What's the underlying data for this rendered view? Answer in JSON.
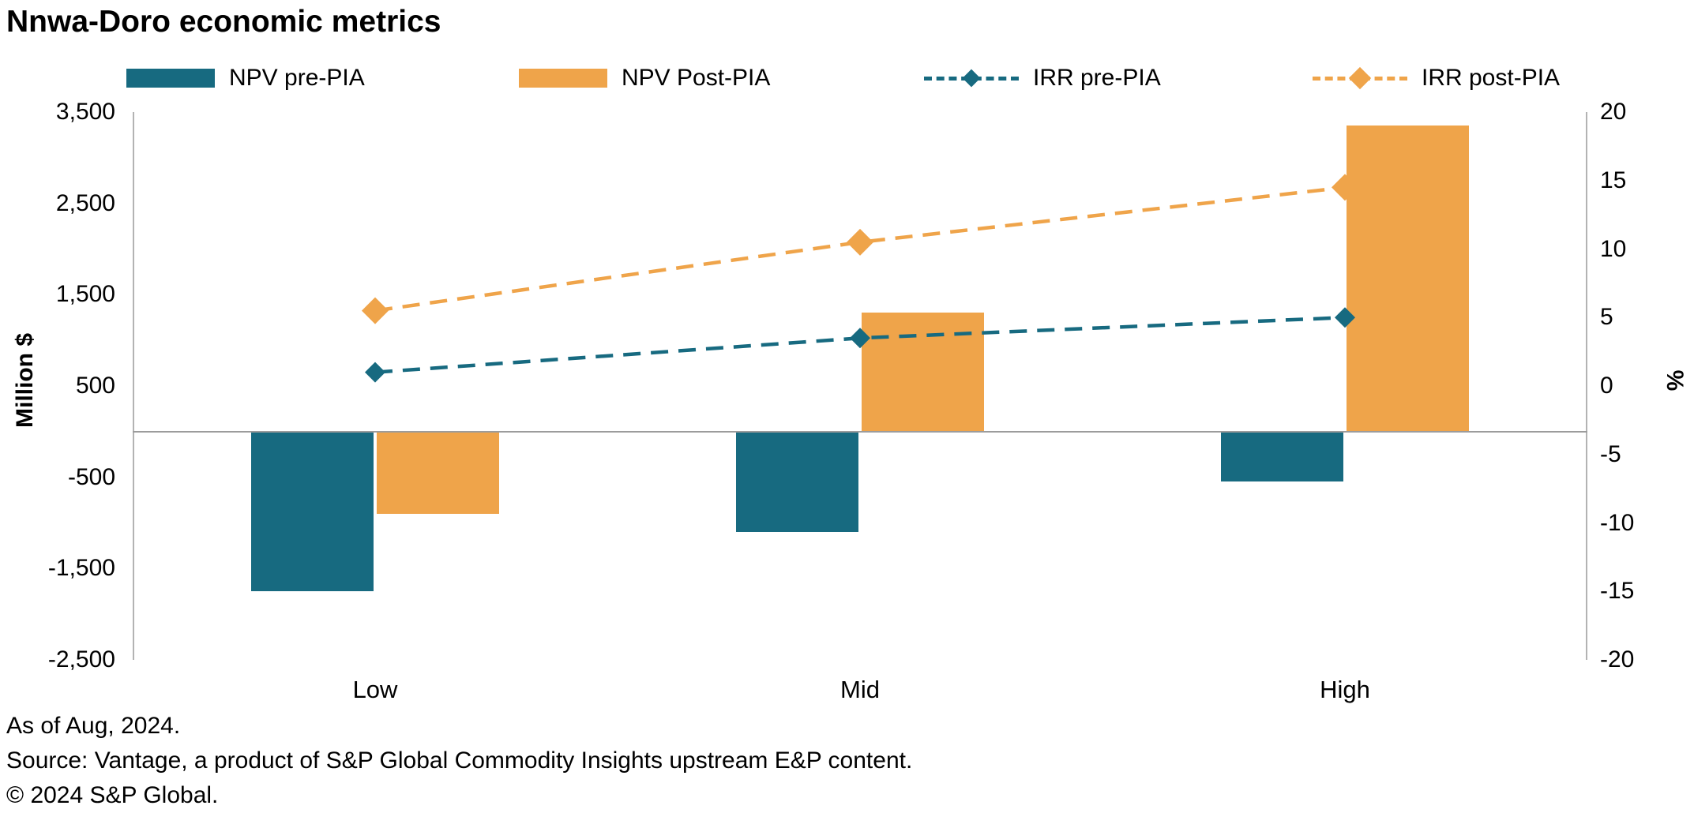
{
  "chart_data": {
    "type": "combo-bar-line",
    "title": "Nnwa-Doro economic metrics",
    "categories": [
      "Low",
      "Mid",
      "High"
    ],
    "bar_series": [
      {
        "name": "NPV pre-PIA",
        "color": "#176A80",
        "axis": "left",
        "values": [
          -1750,
          -1100,
          -550
        ]
      },
      {
        "name": "NPV Post-PIA",
        "color": "#EFA44A",
        "axis": "left",
        "values": [
          -900,
          1300,
          3350
        ]
      }
    ],
    "line_series": [
      {
        "name": "IRR pre-PIA",
        "color": "#176A80",
        "axis": "right",
        "style": "dashed",
        "marker": "diamond",
        "values": [
          1.0,
          3.5,
          5.0
        ]
      },
      {
        "name": "IRR post-PIA",
        "color": "#EFA44A",
        "axis": "right",
        "style": "dashed",
        "marker": "diamond",
        "values": [
          5.5,
          10.5,
          14.5
        ]
      }
    ],
    "left_axis": {
      "label": "Million $",
      "min": -2500,
      "max": 3500,
      "ticks": [
        3500,
        2500,
        1500,
        500,
        -500,
        -1500,
        -2500
      ]
    },
    "right_axis": {
      "label": "%",
      "min": -20,
      "max": 20,
      "ticks": [
        20,
        15,
        10,
        5,
        0,
        -5,
        -10,
        -15,
        -20
      ]
    },
    "grid": false,
    "legend_position": "top"
  },
  "footer": {
    "lines": [
      "As of Aug, 2024.",
      "Source: Vantage, a product of S&P Global Commodity Insights upstream E&P content.",
      "© 2024 S&P Global."
    ]
  }
}
